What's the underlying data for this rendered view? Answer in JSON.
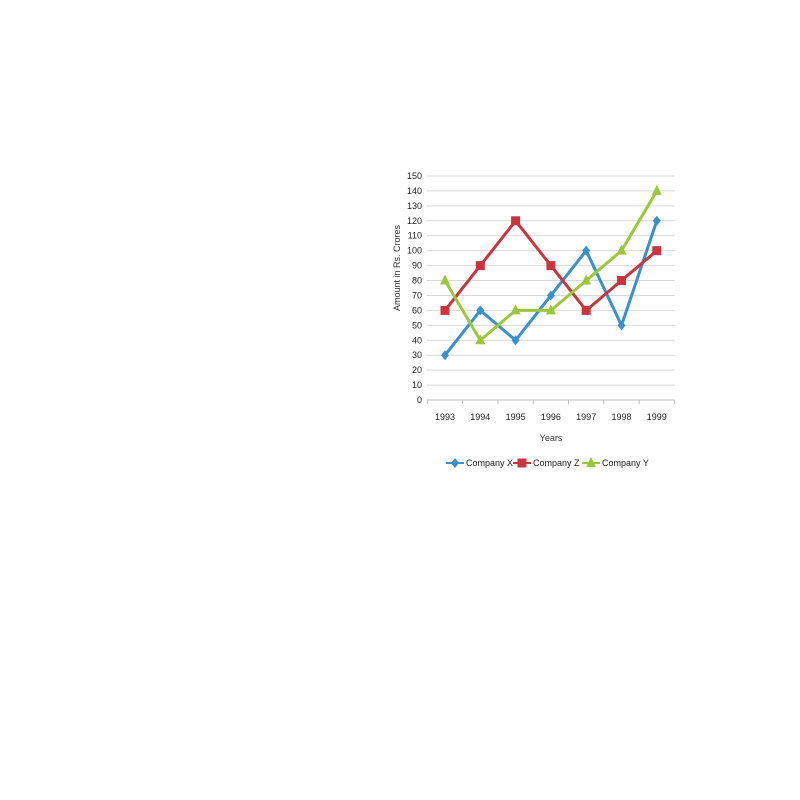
{
  "chart_data": {
    "type": "line",
    "xlabel": "Years",
    "ylabel": "Amount in Rs. Crores",
    "categories": [
      "1993",
      "1994",
      "1995",
      "1996",
      "1997",
      "1998",
      "1999"
    ],
    "ylim": [
      0,
      150
    ],
    "yticks": [
      "0",
      "10",
      "20",
      "30",
      "40",
      "50",
      "60",
      "70",
      "80",
      "90",
      "100",
      "110",
      "120",
      "130",
      "140",
      "150"
    ],
    "grid": true,
    "legend": "bottom",
    "series": [
      {
        "name": "Company X",
        "color": "#3b8fca",
        "marker": "diamond",
        "values": [
          30,
          60,
          40,
          70,
          100,
          50,
          120
        ]
      },
      {
        "name": "Company Z",
        "color": "#c8353f",
        "marker": "square",
        "values": [
          60,
          90,
          120,
          90,
          60,
          80,
          100
        ]
      },
      {
        "name": "Company Y",
        "color": "#9dc73b",
        "marker": "triangle",
        "values": [
          80,
          40,
          60,
          60,
          80,
          100,
          140
        ]
      }
    ]
  }
}
